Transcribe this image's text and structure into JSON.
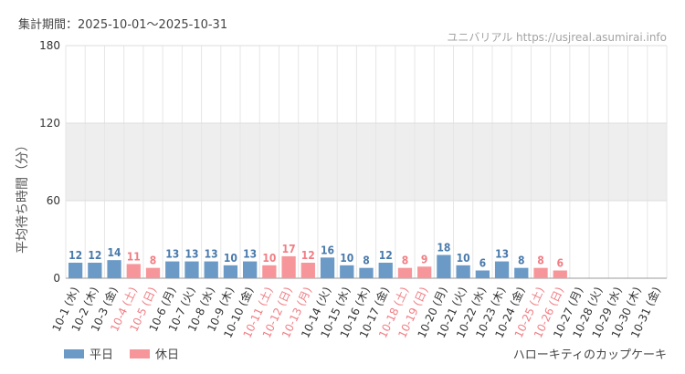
{
  "header": {
    "period": "集計期間：2025-10-01～2025-10-31",
    "site": "ユニバリアル https://usjreal.asumirai.info"
  },
  "footer": {
    "subject": "ハローキティのカップケーキ"
  },
  "colors": {
    "weekday": "#6b9ac7",
    "holiday": "#f7969a",
    "weekday_text": "#4a7aab",
    "holiday_text": "#f07e84",
    "band": "#eeeeee"
  },
  "chart_data": {
    "type": "bar",
    "ylabel": "平均待ち時間（分）",
    "ylim": [
      0,
      180
    ],
    "yticks": [
      0,
      60,
      120,
      180
    ],
    "shaded_band": [
      60,
      120
    ],
    "grid": true,
    "legend": {
      "position": "bottom-left",
      "entries": [
        "平日",
        "休日"
      ]
    },
    "categories": [
      "10-1 (水)",
      "10-2 (木)",
      "10-3 (金)",
      "10-4 (土)",
      "10-5 (日)",
      "10-6 (月)",
      "10-7 (火)",
      "10-8 (水)",
      "10-9 (木)",
      "10-10 (金)",
      "10-11 (土)",
      "10-12 (日)",
      "10-13 (月)",
      "10-14 (火)",
      "10-15 (水)",
      "10-16 (木)",
      "10-17 (金)",
      "10-18 (土)",
      "10-19 (日)",
      "10-20 (月)",
      "10-21 (火)",
      "10-22 (水)",
      "10-23 (木)",
      "10-24 (金)",
      "10-25 (土)",
      "10-26 (日)",
      "10-27 (月)",
      "10-28 (火)",
      "10-29 (水)",
      "10-30 (木)",
      "10-31 (金)"
    ],
    "values": [
      12,
      12,
      14,
      11,
      8,
      13,
      13,
      13,
      10,
      13,
      10,
      17,
      12,
      16,
      10,
      8,
      12,
      8,
      9,
      18,
      10,
      6,
      13,
      8,
      8,
      6,
      null,
      null,
      null,
      null,
      null
    ],
    "day_type": [
      "平日",
      "平日",
      "平日",
      "休日",
      "休日",
      "平日",
      "平日",
      "平日",
      "平日",
      "平日",
      "休日",
      "休日",
      "休日",
      "平日",
      "平日",
      "平日",
      "平日",
      "休日",
      "休日",
      "平日",
      "平日",
      "平日",
      "平日",
      "平日",
      "休日",
      "休日",
      "平日",
      "平日",
      "平日",
      "平日",
      "平日"
    ]
  }
}
